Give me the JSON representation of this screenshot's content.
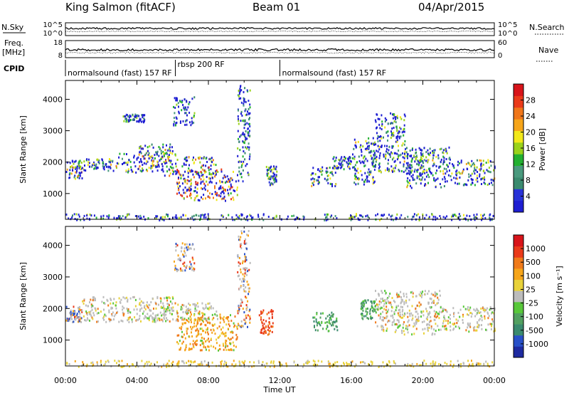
{
  "header": {
    "station": "King Salmon (fitACF)",
    "beam": "Beam 01",
    "date": "04/Apr/2015"
  },
  "left_labels": {
    "nsky": "N.Sky",
    "freq_line1": "Freq.",
    "freq_line2": "[MHz]",
    "cpid": "CPID"
  },
  "right_labels": {
    "nsearch": "N.Search",
    "nave": "Nave"
  },
  "noise_panel": {
    "left_ticks": [
      "10^5",
      "10^0"
    ],
    "right_ticks": [
      "10^5",
      "10^0"
    ]
  },
  "freq_panel": {
    "left_ticks": [
      "18",
      "8"
    ],
    "right_ticks": [
      "60",
      "0"
    ]
  },
  "cpid_segments": [
    {
      "label": "normalsound (fast) 157 RF",
      "start_hour": 0.0,
      "end_hour": 6.15
    },
    {
      "label": "rbsp 200 RF",
      "start_hour": 6.15,
      "end_hour": 12.0
    },
    {
      "label": "normalsound (fast) 157 RF",
      "start_hour": 12.0,
      "end_hour": 24.0
    }
  ],
  "chart_data": [
    {
      "type": "heatmap",
      "name": "power",
      "xlabel": "",
      "ylabel": "Slant Range [km]",
      "xlim": [
        0,
        24
      ],
      "ylim": [
        180,
        4600
      ],
      "yticks": [
        1000,
        2000,
        3000,
        4000
      ],
      "colorbar": {
        "label": "Power [dB]",
        "ticks": [
          "4",
          "8",
          "12",
          "16",
          "20",
          "24",
          "28"
        ],
        "colors": [
          "#1e1ed2",
          "#2832d8",
          "#3a8a6e",
          "#4a9a7e",
          "#22b030",
          "#9ad21a",
          "#f2e81a",
          "#f6a51a",
          "#f0761a",
          "#ea3a1a",
          "#d8141a"
        ]
      },
      "regions": [
        {
          "t0": 0.0,
          "t1": 0.9,
          "r0": 1500,
          "r1": 2100,
          "level": 0.55
        },
        {
          "t0": 0.9,
          "t1": 2.6,
          "r0": 1750,
          "r1": 2150,
          "level": 0.4
        },
        {
          "t0": 2.6,
          "t1": 5.5,
          "r0": 1700,
          "r1": 2300,
          "level": 0.55
        },
        {
          "t0": 4.0,
          "t1": 6.2,
          "r0": 2200,
          "r1": 2600,
          "level": 0.45
        },
        {
          "t0": 5.5,
          "t1": 8.5,
          "r0": 1600,
          "r1": 2200,
          "level": 0.6
        },
        {
          "t0": 6.2,
          "t1": 9.6,
          "r0": 800,
          "r1": 1800,
          "level": 0.7
        },
        {
          "t0": 6.0,
          "t1": 7.2,
          "r0": 3200,
          "r1": 4100,
          "level": 0.25
        },
        {
          "t0": 3.2,
          "t1": 4.4,
          "r0": 3300,
          "r1": 3550,
          "level": 0.25
        },
        {
          "t0": 9.6,
          "t1": 10.3,
          "r0": 1400,
          "r1": 4500,
          "level": 0.3
        },
        {
          "t0": 11.2,
          "t1": 11.8,
          "r0": 1300,
          "r1": 1900,
          "level": 0.35
        },
        {
          "t0": 13.7,
          "t1": 15.1,
          "r0": 1250,
          "r1": 1900,
          "level": 0.45
        },
        {
          "t0": 14.9,
          "t1": 16.0,
          "r0": 1800,
          "r1": 2200,
          "level": 0.35
        },
        {
          "t0": 16.0,
          "t1": 17.3,
          "r0": 1300,
          "r1": 2800,
          "level": 0.4
        },
        {
          "t0": 17.3,
          "t1": 19.0,
          "r0": 2200,
          "r1": 3600,
          "level": 0.35
        },
        {
          "t0": 17.0,
          "t1": 20.0,
          "r0": 1700,
          "r1": 2300,
          "level": 0.4
        },
        {
          "t0": 19.0,
          "t1": 21.5,
          "r0": 1200,
          "r1": 2500,
          "level": 0.4
        },
        {
          "t0": 21.5,
          "t1": 24.0,
          "r0": 1300,
          "r1": 2100,
          "level": 0.45
        },
        {
          "t0": 0.0,
          "t1": 24.0,
          "r0": 180,
          "r1": 380,
          "level": 0.3
        }
      ]
    },
    {
      "type": "heatmap",
      "name": "velocity",
      "xlabel": "Time UT",
      "ylabel": "Slant Range [km]",
      "xlim": [
        0,
        24
      ],
      "ylim": [
        180,
        4600
      ],
      "yticks": [
        1000,
        2000,
        3000,
        4000
      ],
      "xticks": [
        "00:00",
        "04:00",
        "08:00",
        "12:00",
        "16:00",
        "20:00",
        "00:00"
      ],
      "colorbar": {
        "label": "Velocity [m s⁻¹]",
        "ticks": [
          "1000",
          "500",
          "100",
          "25",
          "-25",
          "-100",
          "-500",
          "-1000"
        ],
        "colors": [
          "#1e2aa0",
          "#2850c8",
          "#3a8a6e",
          "#52a060",
          "#58c83a",
          "#bcbcbc",
          "#e8d23a",
          "#f6a51a",
          "#f07a1a",
          "#ea3a1a",
          "#d8141a"
        ]
      },
      "regions": [
        {
          "t0": 0.0,
          "t1": 0.9,
          "r0": 1600,
          "r1": 2100,
          "kind": "mixed"
        },
        {
          "t0": 0.9,
          "t1": 6.0,
          "r0": 1600,
          "r1": 2400,
          "kind": "gray"
        },
        {
          "t0": 5.0,
          "t1": 8.5,
          "r0": 1650,
          "r1": 2200,
          "kind": "gray"
        },
        {
          "t0": 6.2,
          "t1": 9.6,
          "r0": 700,
          "r1": 1900,
          "kind": "orange"
        },
        {
          "t0": 6.0,
          "t1": 7.2,
          "r0": 3200,
          "r1": 4100,
          "kind": "mixed"
        },
        {
          "t0": 9.6,
          "t1": 10.3,
          "r0": 1400,
          "r1": 4500,
          "kind": "mixed"
        },
        {
          "t0": 10.8,
          "t1": 11.6,
          "r0": 1200,
          "r1": 2000,
          "kind": "red"
        },
        {
          "t0": 13.8,
          "t1": 15.2,
          "r0": 1300,
          "r1": 1900,
          "kind": "green"
        },
        {
          "t0": 16.4,
          "t1": 17.3,
          "r0": 1700,
          "r1": 2300,
          "kind": "green"
        },
        {
          "t0": 17.3,
          "t1": 21.0,
          "r0": 1200,
          "r1": 2600,
          "kind": "gray"
        },
        {
          "t0": 21.0,
          "t1": 24.0,
          "r0": 1300,
          "r1": 2100,
          "kind": "gray"
        },
        {
          "t0": 0.0,
          "t1": 24.0,
          "r0": 180,
          "r1": 380,
          "kind": "yellow"
        }
      ]
    }
  ]
}
